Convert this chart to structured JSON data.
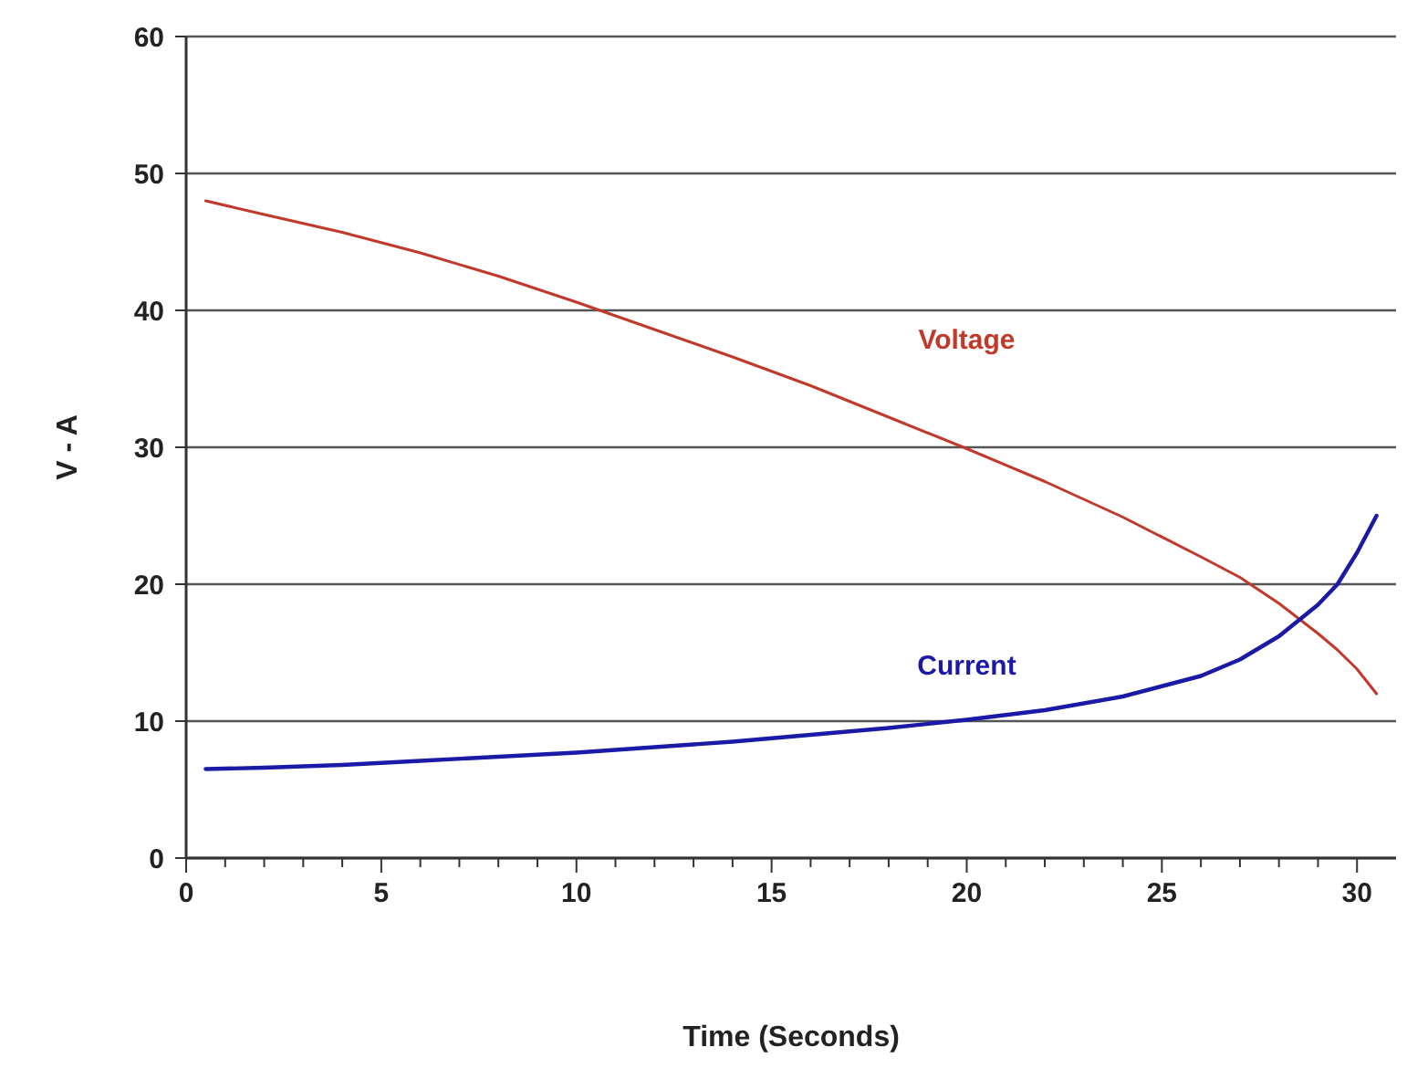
{
  "chart_data": {
    "type": "line",
    "xlabel": "Time (Seconds)",
    "ylabel": "V - A",
    "x": [
      0.5,
      2,
      4,
      6,
      8,
      10,
      12,
      14,
      16,
      18,
      20,
      22,
      24,
      26,
      27,
      28,
      29,
      29.5,
      30,
      30.5
    ],
    "series": [
      {
        "name": "Voltage",
        "color": "#c0392b",
        "values": [
          48,
          47,
          45.7,
          44.2,
          42.5,
          40.6,
          38.6,
          36.6,
          34.5,
          32.2,
          29.9,
          27.5,
          24.9,
          22,
          20.5,
          18.6,
          16.4,
          15.2,
          13.8,
          12
        ]
      },
      {
        "name": "Current",
        "color": "#1a1aa6",
        "values": [
          6.5,
          6.6,
          6.8,
          7.1,
          7.4,
          7.7,
          8.1,
          8.5,
          9,
          9.5,
          10.1,
          10.8,
          11.8,
          13.3,
          14.5,
          16.2,
          18.5,
          20,
          22.3,
          25
        ]
      }
    ],
    "xlim": [
      0,
      31
    ],
    "ylim": [
      0,
      60
    ],
    "xticks": [
      0,
      {
        "value": 1,
        "label": null
      },
      {
        "value": 2,
        "label": null
      },
      {
        "value": 3,
        "label": null
      },
      {
        "value": 4,
        "label": null
      },
      5,
      {
        "value": 6,
        "label": null
      },
      {
        "value": 7,
        "label": null
      },
      {
        "value": 8,
        "label": null
      },
      {
        "value": 9,
        "label": null
      },
      10,
      {
        "value": 11,
        "label": null
      },
      {
        "value": 12,
        "label": null
      },
      {
        "value": 13,
        "label": null
      },
      {
        "value": 14,
        "label": null
      },
      15,
      {
        "value": 16,
        "label": null
      },
      {
        "value": 17,
        "label": null
      },
      {
        "value": 18,
        "label": null
      },
      {
        "value": 19,
        "label": null
      },
      20,
      {
        "value": 21,
        "label": null
      },
      {
        "value": 22,
        "label": null
      },
      {
        "value": 23,
        "label": null
      },
      {
        "value": 24,
        "label": null
      },
      25,
      {
        "value": 26,
        "label": null
      },
      {
        "value": 27,
        "label": null
      },
      {
        "value": 28,
        "label": null
      },
      {
        "value": 29,
        "label": null
      },
      30
    ],
    "yticks": [
      0,
      10,
      20,
      30,
      40,
      50,
      60
    ],
    "grid": "y",
    "marker": "none",
    "line_style": "solid"
  }
}
